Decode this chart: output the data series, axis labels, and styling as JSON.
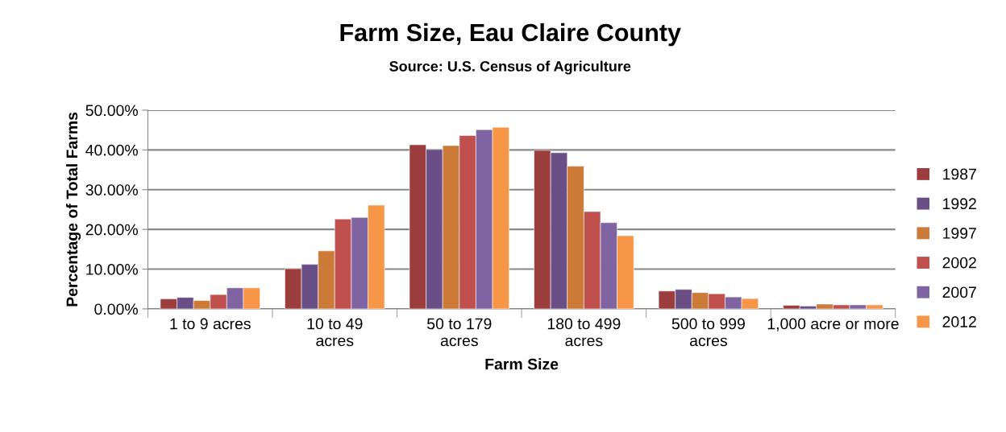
{
  "chart_data": {
    "type": "bar",
    "title": "Farm Size, Eau Claire County",
    "subtitle": "Source: U.S. Census of Agriculture",
    "xlabel": "Farm Size",
    "ylabel": "Percentage of Total Farms",
    "categories": [
      "1 to 9 acres",
      "10 to 49 acres",
      "50 to 179 acres",
      "180 to 499 acres",
      "500 to 999 acres",
      "1,000 acre or more"
    ],
    "series": [
      {
        "name": "1987",
        "color": "#9c3d3d",
        "values": [
          2.5,
          10.1,
          41.3,
          39.9,
          4.5,
          0.9
        ]
      },
      {
        "name": "1992",
        "color": "#6a4f87",
        "values": [
          2.9,
          11.2,
          40.1,
          39.3,
          4.9,
          0.7
        ]
      },
      {
        "name": "1997",
        "color": "#cb7a38",
        "values": [
          2.1,
          14.6,
          41.1,
          35.9,
          4.1,
          1.2
        ]
      },
      {
        "name": "2002",
        "color": "#c0504d",
        "values": [
          3.6,
          22.6,
          43.6,
          24.5,
          3.8,
          1.0
        ]
      },
      {
        "name": "2007",
        "color": "#8064a2",
        "values": [
          5.3,
          23.0,
          45.1,
          21.7,
          3.0,
          1.0
        ]
      },
      {
        "name": "2012",
        "color": "#f79646",
        "values": [
          5.3,
          26.1,
          45.7,
          18.4,
          2.6,
          1.0
        ]
      }
    ],
    "ylim": [
      0,
      50
    ],
    "yticks": [
      {
        "value": 0,
        "label": "0.00%"
      },
      {
        "value": 10,
        "label": "10.00%"
      },
      {
        "value": 20,
        "label": "20.00%"
      },
      {
        "value": 30,
        "label": "30.00%"
      },
      {
        "value": 40,
        "label": "40.00%"
      },
      {
        "value": 50,
        "label": "50.00%"
      }
    ],
    "grid": "y",
    "legend": "right"
  }
}
